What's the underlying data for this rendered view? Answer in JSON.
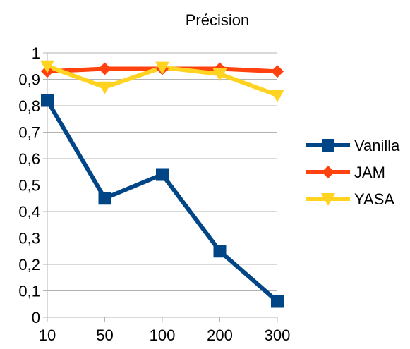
{
  "chart_data": {
    "type": "line",
    "title": "Précision",
    "categories": [
      "10",
      "50",
      "100",
      "200",
      "300"
    ],
    "y_ticks": [
      "0",
      "0,1",
      "0,2",
      "0,3",
      "0,4",
      "0,5",
      "0,6",
      "0,7",
      "0,8",
      "0,9",
      "1"
    ],
    "ylim": [
      0,
      1
    ],
    "grid": "horizontal",
    "legend_position": "right",
    "series": [
      {
        "name": "Vanilla",
        "color": "#004586",
        "marker": "square",
        "values": [
          0.82,
          0.45,
          0.54,
          0.25,
          0.06
        ]
      },
      {
        "name": "JAM",
        "color": "#ff420e",
        "marker": "diamond",
        "values": [
          0.93,
          0.94,
          0.94,
          0.94,
          0.93
        ]
      },
      {
        "name": "YASA",
        "color": "#ffd320",
        "marker": "triangle-down",
        "values": [
          0.95,
          0.87,
          0.945,
          0.92,
          0.84
        ]
      }
    ]
  }
}
